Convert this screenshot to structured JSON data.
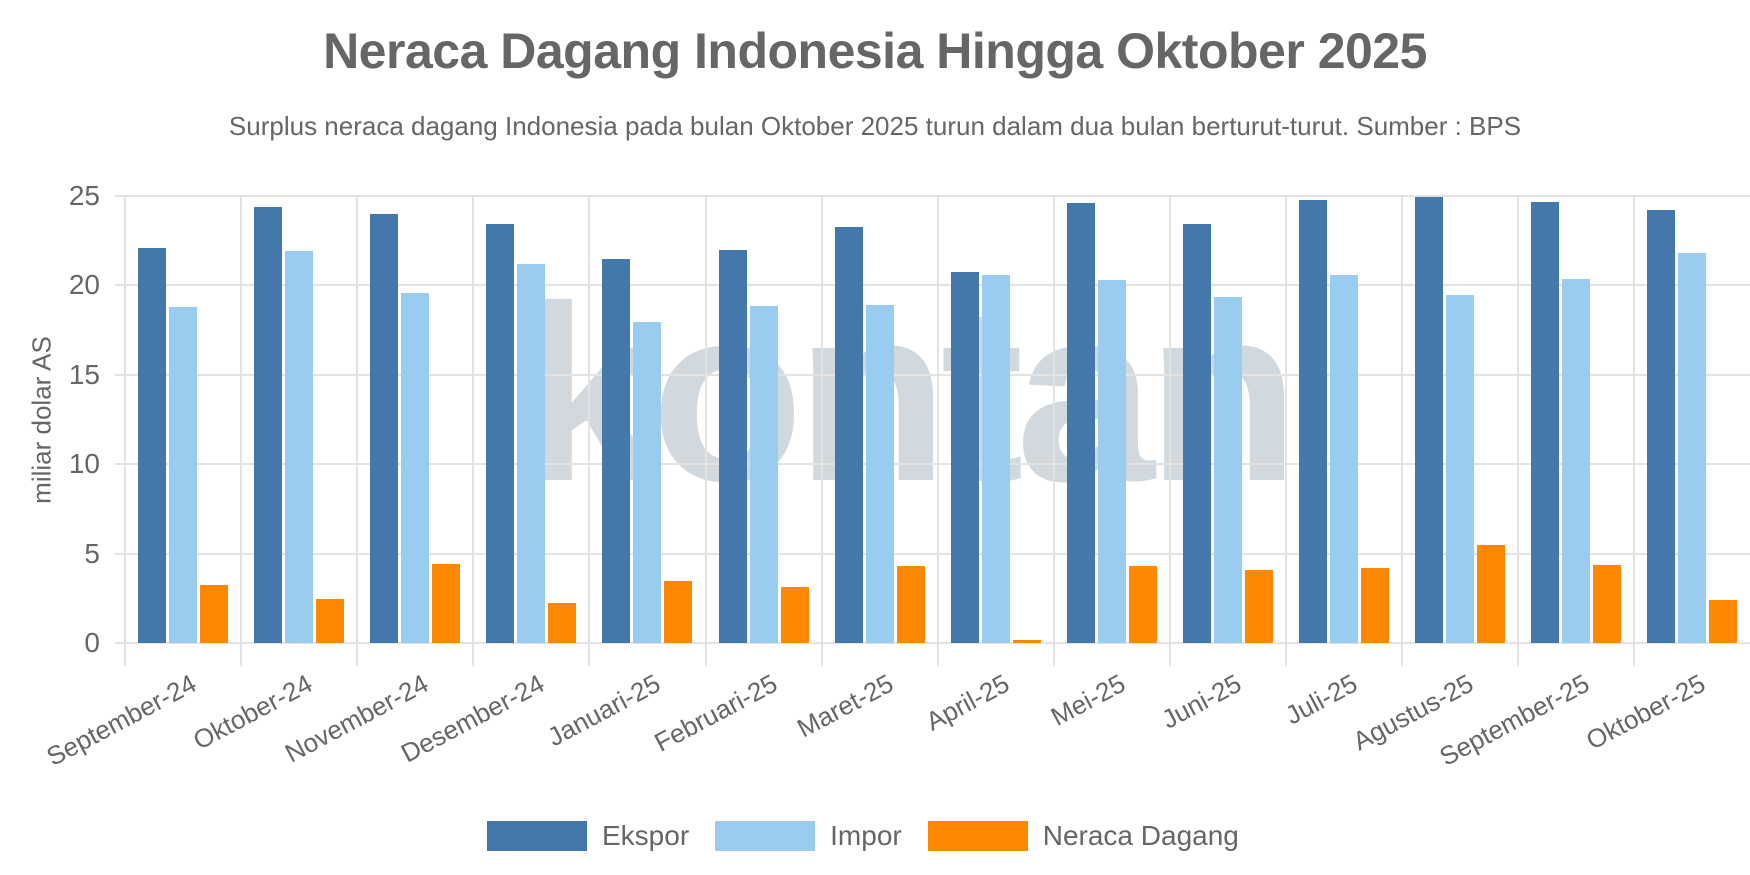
{
  "title": "Neraca Dagang Indonesia Hingga Oktober 2025",
  "subtitle": "Surplus neraca dagang Indonesia pada bulan Oktober 2025 turun dalam dua bulan berturut-turut. Sumber : BPS",
  "watermark": "kontan",
  "colors": {
    "ekspor": "#4477aa",
    "impor": "#99ccee",
    "neraca": "#ff8800"
  },
  "legend": [
    "Ekspor",
    "Impor",
    "Neraca Dagang"
  ],
  "chart_data": {
    "type": "bar",
    "title": "Neraca Dagang Indonesia Hingga Oktober 2025",
    "subtitle": "Surplus neraca dagang Indonesia pada bulan Oktober 2025 turun dalam dua bulan berturut-turut. Sumber : BPS",
    "xlabel": "",
    "ylabel": "miliar dolar AS",
    "ylim": [
      0,
      25
    ],
    "yticks": [
      0,
      5,
      10,
      15,
      20,
      25
    ],
    "grid": true,
    "legend_position": "bottom",
    "categories": [
      "September-24",
      "Oktober-24",
      "November-24",
      "Desember-24",
      "Januari-25",
      "Februari-25",
      "Maret-25",
      "April-25",
      "Mei-25",
      "Juni-25",
      "Juli-25",
      "Agustus-25",
      "September-25",
      "Oktober-25"
    ],
    "series": [
      {
        "name": "Ekspor",
        "color": "#4477aa",
        "values": [
          22.08,
          24.41,
          24.01,
          23.46,
          21.45,
          21.98,
          23.25,
          20.74,
          24.61,
          23.44,
          24.75,
          24.96,
          24.68,
          24.24
        ]
      },
      {
        "name": "Impor",
        "color": "#99ccee",
        "values": [
          18.82,
          21.94,
          19.59,
          21.22,
          17.94,
          18.86,
          18.92,
          20.58,
          20.31,
          19.33,
          20.57,
          19.47,
          20.34,
          21.84
        ]
      },
      {
        "name": "Neraca Dagang",
        "color": "#ff8800",
        "values": [
          3.26,
          2.48,
          4.42,
          2.24,
          3.49,
          3.12,
          4.33,
          0.16,
          4.3,
          4.11,
          4.17,
          5.49,
          4.34,
          2.39
        ]
      }
    ]
  }
}
